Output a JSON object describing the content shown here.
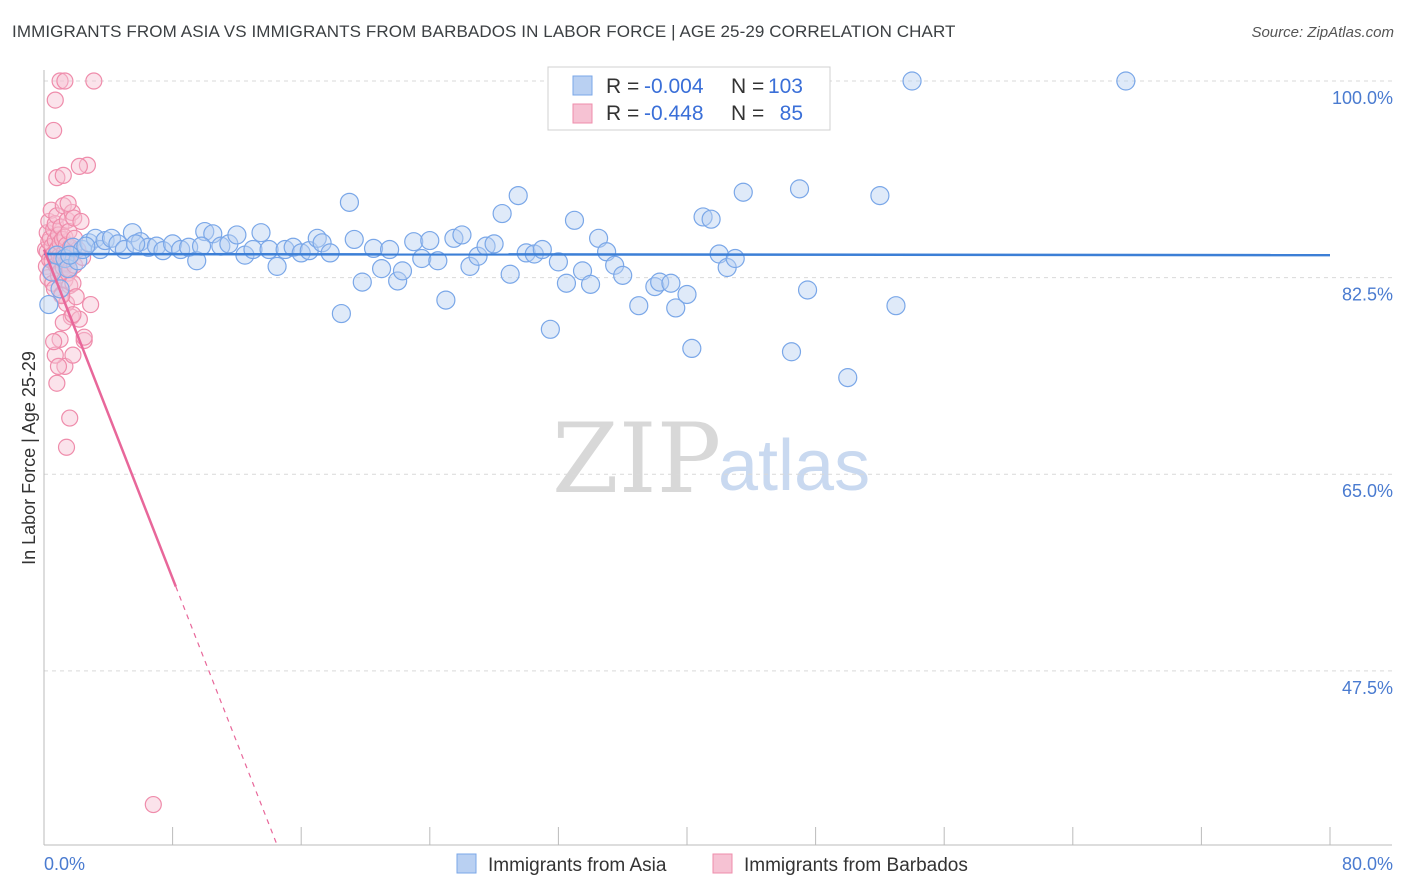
{
  "title": "IMMIGRANTS FROM ASIA VS IMMIGRANTS FROM BARBADOS IN LABOR FORCE | AGE 25-29 CORRELATION CHART",
  "source": "Source: ZipAtlas.com",
  "watermark": {
    "zip": "ZIP",
    "atlas": "atlas"
  },
  "colors": {
    "asia": "#7aa7e8",
    "asia_fill": "#b9d0f2",
    "asia_line": "#3c7fd6",
    "barbados": "#ef8cab",
    "barbados_fill": "#f6c2d3",
    "barbados_line": "#e8679a",
    "grid": "#d9d9d9",
    "tick_text": "#4a7bd0"
  },
  "chart_data": {
    "type": "scatter",
    "xlabel": "",
    "ylabel": "In Labor Force | Age 25-29",
    "xlim": [
      0,
      80
    ],
    "ylim": [
      32,
      100
    ],
    "x_tick_labels": [
      {
        "value": 0,
        "label": "0.0%"
      },
      {
        "value": 80,
        "label": "80.0%"
      }
    ],
    "y_tick_labels": [
      {
        "value": 100.0,
        "label": "100.0%"
      },
      {
        "value": 82.5,
        "label": "82.5%"
      },
      {
        "value": 65.0,
        "label": "65.0%"
      },
      {
        "value": 47.5,
        "label": "47.5%"
      }
    ],
    "legend": [
      {
        "name": "Immigrants from Asia",
        "r_label": "R =",
        "r": "-0.004",
        "n_label": "N =",
        "n": "103"
      },
      {
        "name": "Immigrants from Barbados",
        "r_label": "R =",
        "r": "-0.448",
        "n_label": "N =",
        "n": "85"
      }
    ],
    "series": [
      {
        "name": "Immigrants from Asia",
        "trend": {
          "x": [
            0,
            80
          ],
          "y": [
            84.6,
            84.5
          ]
        },
        "points": [
          [
            0.3,
            80.1
          ],
          [
            0.5,
            83.0
          ],
          [
            0.8,
            84.5
          ],
          [
            1.0,
            81.5
          ],
          [
            1.3,
            84.2
          ],
          [
            1.5,
            83.3
          ],
          [
            1.8,
            85.2
          ],
          [
            2.1,
            84.0
          ],
          [
            2.4,
            85.0
          ],
          [
            2.8,
            85.6
          ],
          [
            3.2,
            86.0
          ],
          [
            3.5,
            85.0
          ],
          [
            3.8,
            85.8
          ],
          [
            4.2,
            86.0
          ],
          [
            4.6,
            85.5
          ],
          [
            5.0,
            85.0
          ],
          [
            5.5,
            86.5
          ],
          [
            6.0,
            85.7
          ],
          [
            6.5,
            85.2
          ],
          [
            7.0,
            85.3
          ],
          [
            7.4,
            84.9
          ],
          [
            8.0,
            85.5
          ],
          [
            8.5,
            85.0
          ],
          [
            9.0,
            85.2
          ],
          [
            9.5,
            84.0
          ],
          [
            10.0,
            86.6
          ],
          [
            10.5,
            86.4
          ],
          [
            11.0,
            85.3
          ],
          [
            11.5,
            85.5
          ],
          [
            12.0,
            86.3
          ],
          [
            12.5,
            84.5
          ],
          [
            13.0,
            85.0
          ],
          [
            13.5,
            86.5
          ],
          [
            14.0,
            85.0
          ],
          [
            14.5,
            83.5
          ],
          [
            15.0,
            85.0
          ],
          [
            15.5,
            85.2
          ],
          [
            16.0,
            84.7
          ],
          [
            16.5,
            84.9
          ],
          [
            17.0,
            86.0
          ],
          [
            17.3,
            85.6
          ],
          [
            17.8,
            84.7
          ],
          [
            18.5,
            79.3
          ],
          [
            19.0,
            89.2
          ],
          [
            19.3,
            85.9
          ],
          [
            19.8,
            82.1
          ],
          [
            20.5,
            85.1
          ],
          [
            21.0,
            83.3
          ],
          [
            21.5,
            85.0
          ],
          [
            22.0,
            82.2
          ],
          [
            22.3,
            83.1
          ],
          [
            23.0,
            85.7
          ],
          [
            23.5,
            84.2
          ],
          [
            24.0,
            85.8
          ],
          [
            24.5,
            84.0
          ],
          [
            25.0,
            80.5
          ],
          [
            25.5,
            86.0
          ],
          [
            26.0,
            86.3
          ],
          [
            26.5,
            83.5
          ],
          [
            27.0,
            84.4
          ],
          [
            27.5,
            85.3
          ],
          [
            28.0,
            85.5
          ],
          [
            28.5,
            88.2
          ],
          [
            29.0,
            82.8
          ],
          [
            29.5,
            89.8
          ],
          [
            30.0,
            84.7
          ],
          [
            30.5,
            84.6
          ],
          [
            31.0,
            85.0
          ],
          [
            31.5,
            77.9
          ],
          [
            32.0,
            83.9
          ],
          [
            32.5,
            82.0
          ],
          [
            33.0,
            87.6
          ],
          [
            33.5,
            83.1
          ],
          [
            34.0,
            81.9
          ],
          [
            34.5,
            86.0
          ],
          [
            35.0,
            84.8
          ],
          [
            35.5,
            83.6
          ],
          [
            36.0,
            82.7
          ],
          [
            37.0,
            80.0
          ],
          [
            38.0,
            81.7
          ],
          [
            38.3,
            82.1
          ],
          [
            39.0,
            82.0
          ],
          [
            39.3,
            79.8
          ],
          [
            40.0,
            81.0
          ],
          [
            40.3,
            76.2
          ],
          [
            41.0,
            87.9
          ],
          [
            41.5,
            87.7
          ],
          [
            42.0,
            84.6
          ],
          [
            42.5,
            83.4
          ],
          [
            43.0,
            84.2
          ],
          [
            43.5,
            90.1
          ],
          [
            46.5,
            75.9
          ],
          [
            47.0,
            90.4
          ],
          [
            47.5,
            81.4
          ],
          [
            50.0,
            73.6
          ],
          [
            52.0,
            89.8
          ],
          [
            53.0,
            80.0
          ],
          [
            54.0,
            100.0
          ],
          [
            67.3,
            100.0
          ],
          [
            1.6,
            84.5
          ],
          [
            2.6,
            85.3
          ],
          [
            5.7,
            85.5
          ],
          [
            9.8,
            85.3
          ]
        ]
      },
      {
        "name": "Immigrants from Barbados",
        "trend": {
          "x": [
            0,
            8.2
          ],
          "y": [
            85.0,
            55.0
          ]
        },
        "trend_dashed": {
          "x": [
            8.2,
            14.5
          ],
          "y": [
            55.0,
            32.0
          ]
        },
        "points": [
          [
            0.1,
            85.0
          ],
          [
            0.15,
            83.5
          ],
          [
            0.2,
            84.8
          ],
          [
            0.2,
            86.5
          ],
          [
            0.25,
            82.5
          ],
          [
            0.3,
            87.5
          ],
          [
            0.3,
            85.7
          ],
          [
            0.35,
            84.1
          ],
          [
            0.4,
            86.0
          ],
          [
            0.4,
            83.0
          ],
          [
            0.45,
            88.5
          ],
          [
            0.5,
            85.3
          ],
          [
            0.5,
            84.0
          ],
          [
            0.55,
            82.0
          ],
          [
            0.6,
            86.8
          ],
          [
            0.6,
            84.6
          ],
          [
            0.65,
            81.5
          ],
          [
            0.7,
            85.8
          ],
          [
            0.7,
            87.3
          ],
          [
            0.75,
            83.6
          ],
          [
            0.8,
            84.9
          ],
          [
            0.8,
            88.0
          ],
          [
            0.85,
            85.1
          ],
          [
            0.9,
            82.7
          ],
          [
            0.9,
            86.3
          ],
          [
            0.95,
            84.4
          ],
          [
            1.0,
            83.0
          ],
          [
            1.0,
            85.6
          ],
          [
            1.05,
            87.0
          ],
          [
            1.1,
            84.2
          ],
          [
            1.1,
            81.0
          ],
          [
            1.15,
            85.9
          ],
          [
            1.2,
            83.4
          ],
          [
            1.2,
            88.9
          ],
          [
            1.25,
            84.7
          ],
          [
            1.3,
            82.3
          ],
          [
            1.3,
            86.1
          ],
          [
            1.35,
            83.8
          ],
          [
            1.4,
            85.4
          ],
          [
            1.4,
            80.2
          ],
          [
            1.45,
            87.6
          ],
          [
            1.5,
            84.0
          ],
          [
            1.5,
            82.9
          ],
          [
            1.55,
            86.6
          ],
          [
            1.6,
            83.2
          ],
          [
            1.6,
            81.8
          ],
          [
            1.65,
            85.2
          ],
          [
            1.7,
            79.0
          ],
          [
            1.7,
            84.5
          ],
          [
            1.75,
            88.3
          ],
          [
            1.8,
            82.0
          ],
          [
            1.85,
            87.8
          ],
          [
            1.9,
            83.6
          ],
          [
            2.0,
            80.8
          ],
          [
            2.1,
            85.0
          ],
          [
            2.2,
            78.8
          ],
          [
            2.3,
            87.5
          ],
          [
            2.5,
            76.9
          ],
          [
            2.7,
            92.5
          ],
          [
            2.9,
            80.1
          ],
          [
            0.8,
            91.4
          ],
          [
            1.2,
            91.6
          ],
          [
            0.6,
            95.6
          ],
          [
            0.7,
            98.3
          ],
          [
            1.0,
            100.0
          ],
          [
            1.3,
            100.0
          ],
          [
            3.1,
            100.0
          ],
          [
            1.5,
            89.1
          ],
          [
            1.6,
            70.0
          ],
          [
            1.3,
            74.6
          ],
          [
            0.8,
            73.1
          ],
          [
            0.7,
            75.6
          ],
          [
            1.0,
            77.0
          ],
          [
            1.4,
            67.4
          ],
          [
            1.2,
            78.5
          ],
          [
            1.8,
            75.6
          ],
          [
            0.6,
            76.8
          ],
          [
            2.5,
            77.2
          ],
          [
            1.8,
            79.2
          ],
          [
            1.1,
            80.9
          ],
          [
            2.2,
            92.4
          ],
          [
            0.9,
            74.6
          ],
          [
            6.8,
            35.6
          ],
          [
            1.9,
            86.0
          ],
          [
            2.4,
            84.3
          ]
        ]
      }
    ]
  }
}
